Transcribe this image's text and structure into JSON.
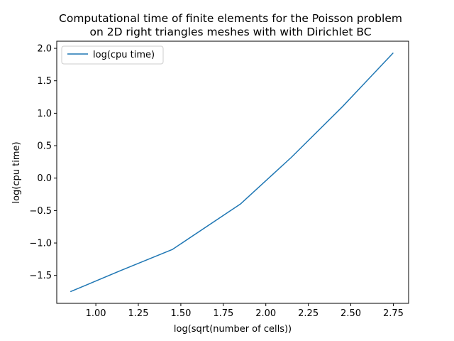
{
  "chart_data": {
    "type": "line",
    "title_lines": [
      "Computational time of finite elements for the Poisson problem",
      "on 2D right triangles meshes with with Dirichlet BC"
    ],
    "xlabel": "log(sqrt(number of cells))",
    "ylabel": "log(cpu time)",
    "xlim": [
      0.77,
      2.84
    ],
    "ylim": [
      -1.93,
      2.11
    ],
    "xticks": [
      1.0,
      1.25,
      1.5,
      1.75,
      2.0,
      2.25,
      2.5,
      2.75
    ],
    "xtick_labels": [
      "1.00",
      "1.25",
      "1.50",
      "1.75",
      "2.00",
      "2.25",
      "2.50",
      "2.75"
    ],
    "yticks": [
      -1.5,
      -1.0,
      -0.5,
      0.0,
      0.5,
      1.0,
      1.5,
      2.0
    ],
    "ytick_labels": [
      "−1.5",
      "−1.0",
      "−0.5",
      "0.0",
      "0.5",
      "1.0",
      "1.5",
      "2.0"
    ],
    "grid": false,
    "legend_position": "upper-left",
    "series": [
      {
        "name": "log(cpu time)",
        "color": "#1f77b4",
        "x": [
          0.85,
          1.15,
          1.45,
          1.85,
          2.15,
          2.45,
          2.75
        ],
        "y": [
          -1.75,
          -1.42,
          -1.1,
          -0.4,
          0.32,
          1.1,
          1.93
        ]
      }
    ]
  }
}
